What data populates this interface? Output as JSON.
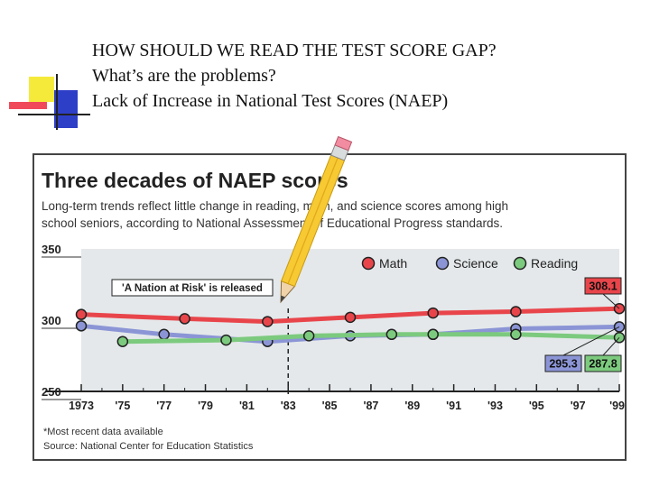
{
  "slide": {
    "heading_lines": [
      "HOW SHOULD WE READ THE TEST SCORE GAP?",
      "What’s are the problems?",
      "Lack of Increase in National Test Scores (NAEP)"
    ]
  },
  "colors": {
    "math": "#e8454b",
    "science": "#8b95d6",
    "reading": "#7cca7e",
    "deco_yellow": "#f5ea3a",
    "deco_blue": "#2e3fc7",
    "deco_red": "#f04a5a"
  },
  "chart_data": {
    "type": "line",
    "title": "Three decades of NAEP scores",
    "subtitle": "Long-term trends reflect little change in reading, math, and science scores among high school seniors, according to National Assessment of Educational Progress standards.",
    "x_tick_labels": [
      "1973",
      "'75",
      "'77",
      "'79",
      "'81",
      "'83",
      "'85",
      "'87",
      "'89",
      "'91",
      "'93",
      "'95",
      "'97",
      "'99*"
    ],
    "x_tick_years": [
      1973,
      1975,
      1977,
      1979,
      1981,
      1983,
      1985,
      1987,
      1989,
      1991,
      1993,
      1995,
      1997,
      1999
    ],
    "xlim": [
      1973,
      1999
    ],
    "ylim": [
      250,
      350
    ],
    "y_ticks": [
      250,
      300,
      350
    ],
    "legend_position": "top-right",
    "series": [
      {
        "name": "Math",
        "color_key": "math",
        "x": [
          1973,
          1978,
          1982,
          1986,
          1990,
          1994,
          1999
        ],
        "y": [
          304,
          301,
          299,
          302,
          305,
          306,
          308.1
        ],
        "end_label": "308.1"
      },
      {
        "name": "Science",
        "color_key": "science",
        "x": [
          1973,
          1977,
          1982,
          1986,
          1990,
          1994,
          1999
        ],
        "y": [
          296,
          290,
          285,
          289,
          290,
          294,
          295.3
        ],
        "end_label": "295.3"
      },
      {
        "name": "Reading",
        "color_key": "reading",
        "x": [
          1975,
          1980,
          1984,
          1988,
          1990,
          1994,
          1999
        ],
        "y": [
          285,
          286,
          289,
          290,
          290,
          290,
          287.8
        ],
        "end_label": "287.8"
      }
    ],
    "annotation": {
      "text": "'A Nation at Risk' is released",
      "year": 1983
    },
    "footnotes": [
      "*Most recent data available",
      "Source: National Center for Education Statistics"
    ]
  }
}
